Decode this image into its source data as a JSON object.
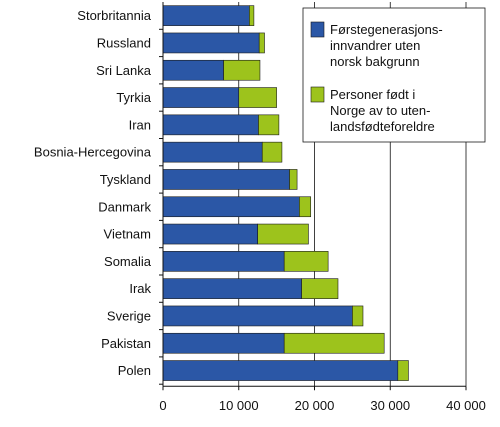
{
  "chart_data": {
    "type": "bar",
    "orientation": "horizontal",
    "stacked": true,
    "categories": [
      "Storbritannia",
      "Russland",
      "Sri Lanka",
      "Tyrkia",
      "Iran",
      "Bosnia-Hercegovina",
      "Tyskland",
      "Danmark",
      "Vietnam",
      "Somalia",
      "Irak",
      "Sverige",
      "Pakistan",
      "Polen"
    ],
    "series": [
      {
        "name": "Førstegenerasjons-innvandrer uten norsk bakgrunn",
        "color": "#2b57a6",
        "values": [
          11400,
          12700,
          8000,
          10000,
          12600,
          13100,
          16700,
          18000,
          12500,
          16000,
          18300,
          25000,
          16000,
          31000
        ]
      },
      {
        "name": "Personer født i Norge av to utenlandsfødte foreldre",
        "color": "#9dc31c",
        "values": [
          600,
          700,
          4800,
          5000,
          2700,
          2600,
          1000,
          1500,
          6700,
          5800,
          4800,
          1400,
          13200,
          1400
        ]
      }
    ],
    "xlim": [
      0,
      40000
    ],
    "xticks": [
      0,
      10000,
      20000,
      30000,
      40000
    ],
    "xtick_labels": [
      "0",
      "10 000",
      "20 000",
      "30 000",
      "40 000"
    ],
    "grid": "vertical",
    "legend_position": "top-right",
    "legend_labels": [
      [
        "Førstegenerasjons-",
        "innvandrer uten",
        "norsk bakgrunn"
      ],
      [
        "Personer født i",
        "Norge av to uten-",
        "landsfødteforeldre"
      ]
    ],
    "title": "",
    "xlabel": "",
    "ylabel": ""
  }
}
